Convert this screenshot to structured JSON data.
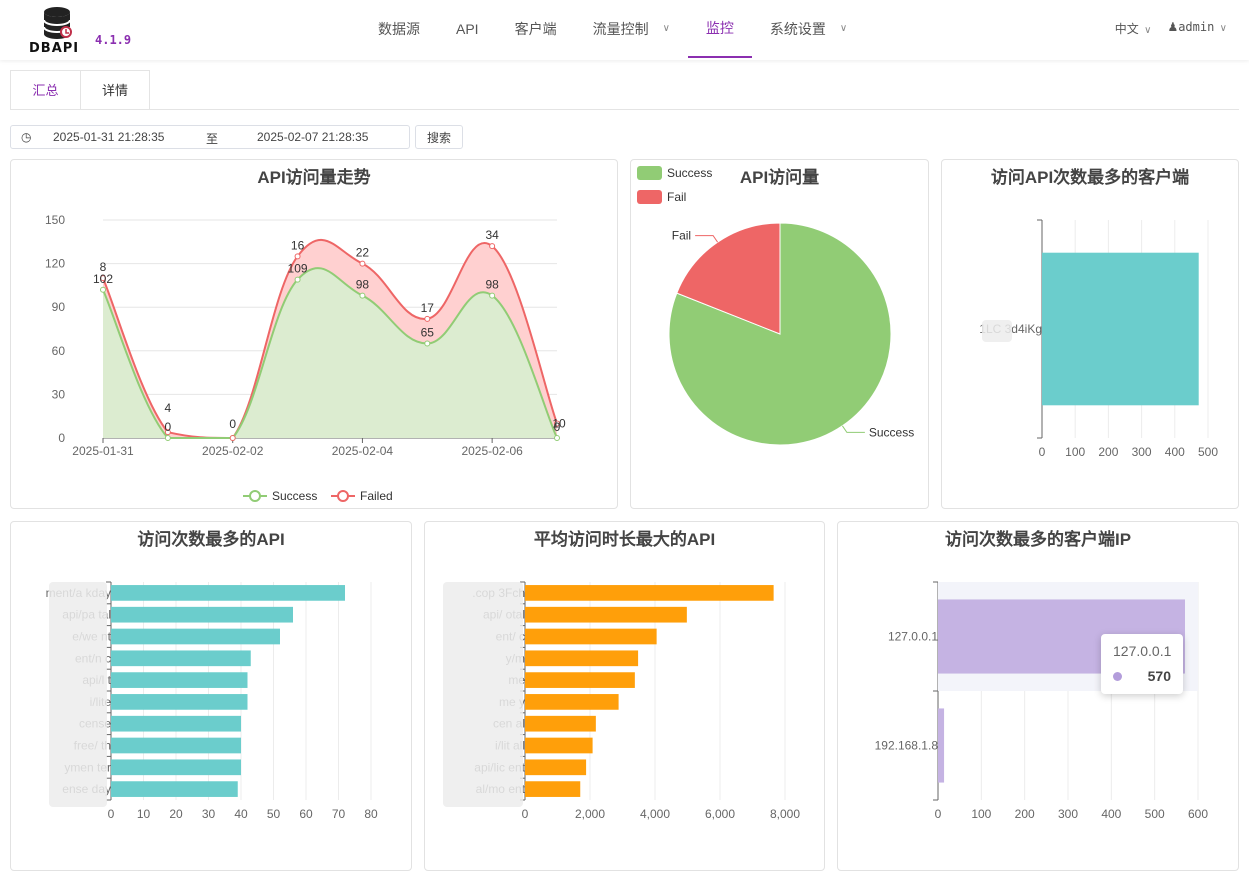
{
  "app": {
    "logo_text": "DBAPI",
    "version": "4.1.9"
  },
  "nav": {
    "items": [
      {
        "label": "数据源"
      },
      {
        "label": "API"
      },
      {
        "label": "客户端"
      },
      {
        "label": "流量控制"
      },
      {
        "label": "监控"
      },
      {
        "label": "系统设置"
      }
    ],
    "active": "监控",
    "language": "中文",
    "user": "admin"
  },
  "tabs": [
    {
      "label": "汇总"
    },
    {
      "label": "详情"
    }
  ],
  "filter": {
    "start": "2025-01-31 21:28:35",
    "separator": "至",
    "end": "2025-02-07 21:28:35",
    "search_label": "搜索"
  },
  "colors": {
    "success": "#91cc75",
    "fail": "#ee6666",
    "teal": "#6bcdcc",
    "orange": "#ff9f0a",
    "purple": "#c5b3e3",
    "accent": "#8b2fb0"
  },
  "chart_data": [
    {
      "type": "area",
      "title": "API访问量走势",
      "x_ticks": [
        "2025-01-31",
        "2025-02-02",
        "2025-02-04",
        "2025-02-06"
      ],
      "x_range": [
        0,
        7
      ],
      "ylim": [
        0,
        150
      ],
      "y_ticks": [
        0,
        30,
        60,
        90,
        120,
        150
      ],
      "x": [
        0,
        1,
        2,
        3,
        4,
        5,
        6,
        7
      ],
      "series": [
        {
          "name": "Success",
          "values": [
            102,
            0,
            0,
            109,
            98,
            65,
            98,
            0
          ],
          "color": "#91cc75"
        },
        {
          "name": "Failed",
          "values": [
            8,
            4,
            0,
            16,
            22,
            17,
            34,
            10
          ],
          "color": "#ee6666"
        }
      ],
      "legend": "bottom",
      "grid": true
    },
    {
      "type": "pie",
      "title": "API访问量",
      "slices": [
        {
          "name": "Success",
          "value": 81,
          "color": "#91cc75"
        },
        {
          "name": "Fail",
          "value": 19,
          "color": "#ee6666"
        }
      ],
      "legend": "top-left"
    },
    {
      "type": "bar",
      "title": "访问API次数最多的客户端",
      "orientation": "horizontal",
      "categories": [
        "1LC 3d4iKg"
      ],
      "values": [
        472
      ],
      "xlim": [
        0,
        500
      ],
      "x_ticks": [
        0,
        100,
        200,
        300,
        400,
        500
      ]
    },
    {
      "type": "bar",
      "title": "访问次数最多的API",
      "orientation": "horizontal",
      "categories": [
        "ment/a kday",
        "api/pa tal",
        "e/we nt",
        "ent/n c",
        "api/l t",
        "i/lite",
        "cense",
        "free/ th",
        "ymen ter",
        "ense day"
      ],
      "values": [
        72,
        56,
        52,
        43,
        42,
        42,
        40,
        40,
        40,
        39
      ],
      "xlim": [
        0,
        80
      ],
      "x_ticks": [
        0,
        10,
        20,
        30,
        40,
        50,
        60,
        70,
        80
      ]
    },
    {
      "type": "bar",
      "title": "平均访问时长最大的API",
      "orientation": "horizontal",
      "categories": [
        ".cop 3Fch",
        "api/ otal",
        "ent/ c",
        "y/m",
        "me",
        "me y",
        "cen al",
        "i/lit all",
        "api/lic ent",
        "al/mo ent"
      ],
      "values": [
        7650,
        4980,
        4050,
        3480,
        3380,
        2880,
        2180,
        2080,
        1880,
        1700
      ],
      "xlim": [
        0,
        8000
      ],
      "x_ticks": [
        "0",
        "2,000",
        "4,000",
        "6,000",
        "8,000"
      ]
    },
    {
      "type": "bar",
      "title": "访问次数最多的客户端IP",
      "orientation": "horizontal",
      "categories": [
        "127.0.0.1",
        "192.168.1.8"
      ],
      "values": [
        570,
        14
      ],
      "xlim": [
        0,
        600
      ],
      "x_ticks": [
        0,
        100,
        200,
        300,
        400,
        500,
        600
      ],
      "tooltip": {
        "label": "127.0.0.1",
        "value": "570"
      }
    }
  ]
}
